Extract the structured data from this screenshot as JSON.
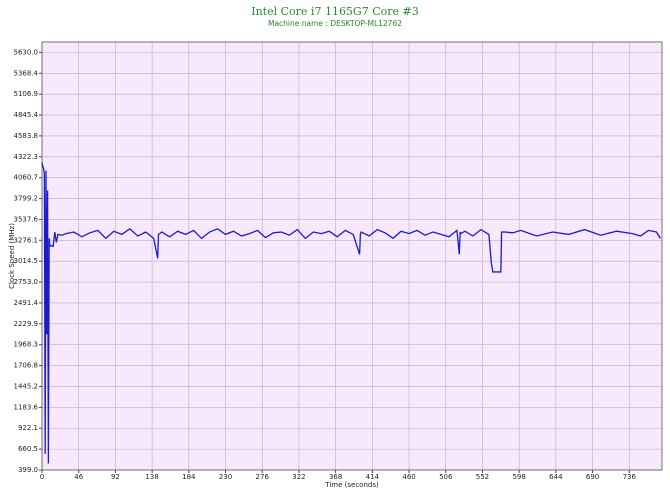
{
  "chart_data": {
    "type": "line",
    "title": "Intel Core i7 1165G7 Core #3",
    "subtitle": "Machine name : DESKTOP-ML12762",
    "xlabel": "Time (seconds)",
    "ylabel": "Clock Speed (MHz)",
    "xlim": [
      0,
      777
    ],
    "ylim": [
      399,
      5760
    ],
    "xticks": [
      0,
      46,
      92,
      138,
      184,
      230,
      276,
      322,
      368,
      414,
      460,
      506,
      552,
      598,
      644,
      690,
      736
    ],
    "yticks": [
      {
        "value": 399,
        "label": "399.0"
      },
      660.5,
      922.1,
      1183.6,
      1445.2,
      1706.8,
      1968.3,
      2229.9,
      2491.4,
      {
        "value": 2753,
        "label": "2753.0"
      },
      3014.5,
      3276.1,
      3537.6,
      3799.2,
      4060.7,
      4322.3,
      4583.8,
      4845.4,
      5106.9,
      5368.4,
      {
        "value": 5630,
        "label": "5630.0"
      }
    ],
    "grid": true,
    "series": [
      {
        "color": "#1c1ccc",
        "x": [
          0,
          1,
          2,
          3,
          4,
          5,
          6,
          7,
          8,
          9,
          10,
          12,
          14,
          16,
          18,
          20,
          25,
          30,
          40,
          50,
          60,
          70,
          80,
          90,
          100,
          110,
          120,
          130,
          140,
          145,
          146,
          150,
          160,
          170,
          180,
          190,
          200,
          210,
          220,
          230,
          240,
          250,
          260,
          270,
          280,
          290,
          300,
          310,
          320,
          330,
          340,
          350,
          360,
          370,
          380,
          390,
          398,
          399,
          400,
          410,
          420,
          430,
          440,
          450,
          460,
          470,
          480,
          490,
          500,
          510,
          520,
          523,
          524,
          525,
          530,
          540,
          550,
          560,
          561,
          563,
          565,
          570,
          575,
          576,
          580,
          590,
          600,
          620,
          640,
          660,
          680,
          700,
          720,
          740,
          750,
          760,
          770,
          775
        ],
        "values": [
          4250,
          4200,
          4180,
          4100,
          600,
          4150,
          2100,
          3900,
          480,
          3300,
          3200,
          3210,
          3200,
          3380,
          3250,
          3350,
          3340,
          3360,
          3380,
          3320,
          3370,
          3400,
          3300,
          3390,
          3350,
          3420,
          3330,
          3380,
          3300,
          3050,
          3350,
          3380,
          3320,
          3390,
          3350,
          3400,
          3300,
          3380,
          3420,
          3350,
          3390,
          3330,
          3360,
          3400,
          3310,
          3370,
          3380,
          3340,
          3410,
          3300,
          3380,
          3360,
          3390,
          3320,
          3400,
          3350,
          3100,
          3350,
          3380,
          3330,
          3410,
          3370,
          3300,
          3390,
          3360,
          3400,
          3340,
          3380,
          3350,
          3320,
          3400,
          3100,
          3380,
          3360,
          3390,
          3330,
          3410,
          3350,
          3250,
          3000,
          2880,
          2880,
          2880,
          3380,
          3380,
          3370,
          3400,
          3330,
          3380,
          3350,
          3410,
          3340,
          3390,
          3360,
          3330,
          3400,
          3380,
          3300
        ]
      }
    ]
  }
}
